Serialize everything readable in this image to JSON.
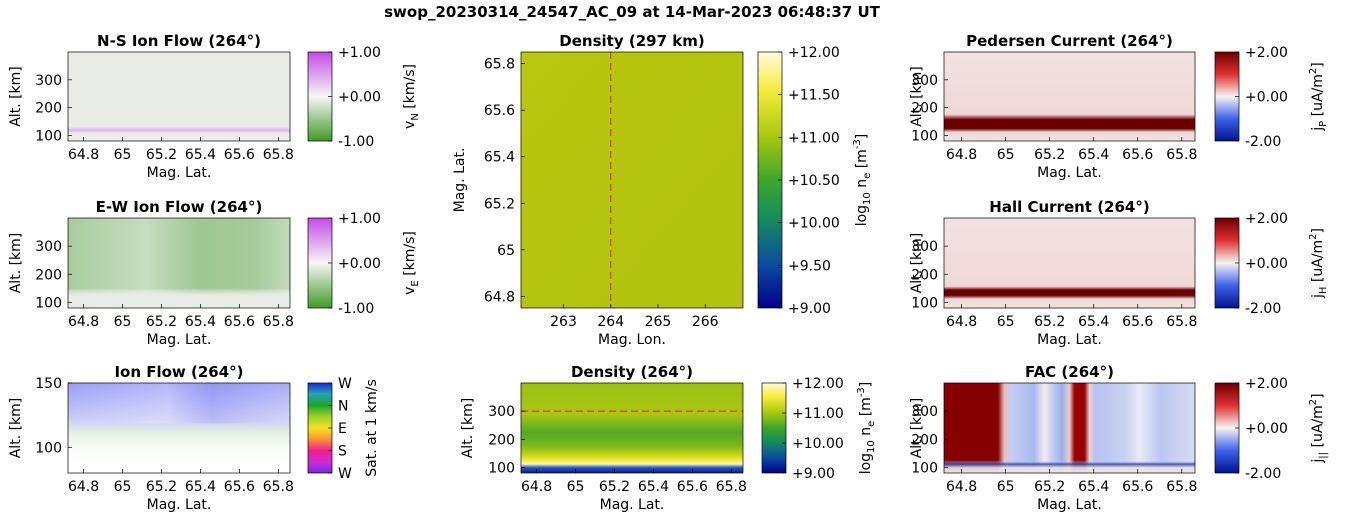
{
  "suptitle": "swop_20230314_24547_AC_09 at 14-Mar-2023 06:48:37 UT",
  "colors": {
    "ns_bg": "#e9ebe6",
    "ns_band": "#e3b6ef",
    "ew_light": "#b8d3ad",
    "ew_dark": "#94c487",
    "ew_low": "#e6ebe4",
    "density_yellowgreen": "#b8c810",
    "density_dark": "#0a1aa8",
    "current_bg": "#f1dcdc",
    "current_band": "#6b0000",
    "fac_red": "#860000",
    "fac_blue": "#c3cdf2",
    "fac_dark_blue": "#2a3fb0",
    "ref_line": "#e0283a"
  },
  "panels": {
    "ns_flow": {
      "title": "N-S Ion Flow (264°)",
      "xlabel": "Mag. Lat.",
      "ylabel": "Alt. [km]",
      "xticks": [
        "64.8",
        "65",
        "65.2",
        "65.4",
        "65.6",
        "65.8"
      ],
      "yticks": [
        "100",
        "200",
        "300"
      ],
      "cbar_ticks": [
        "+1.00",
        "+0.00",
        "-1.00"
      ],
      "cbar_label": "v_N [km/s]"
    },
    "ew_flow": {
      "title": "E-W Ion Flow (264°)",
      "xlabel": "Mag. Lat.",
      "ylabel": "Alt. [km]",
      "xticks": [
        "64.8",
        "65",
        "65.2",
        "65.4",
        "65.6",
        "65.8"
      ],
      "yticks": [
        "100",
        "200",
        "300"
      ],
      "cbar_ticks": [
        "+1.00",
        "+0.00",
        "-1.00"
      ],
      "cbar_label": "v_E [km/s]"
    },
    "ion_flow": {
      "title": "Ion Flow (264°)",
      "xlabel": "Mag. Lat.",
      "ylabel": "Alt. [km]",
      "xticks": [
        "64.8",
        "65",
        "65.2",
        "65.4",
        "65.6",
        "65.8"
      ],
      "yticks": [
        "100",
        "150"
      ],
      "cbar_ticks": [
        "W",
        "N",
        "E",
        "S",
        "W"
      ],
      "cbar_label": "Sat. at 1 km/s"
    },
    "density_map": {
      "title": "Density (297 km)",
      "xlabel": "Mag. Lon.",
      "ylabel": "Mag. Lat.",
      "xticks": [
        "263",
        "264",
        "265",
        "266"
      ],
      "yticks": [
        "64.8",
        "65",
        "65.2",
        "65.4",
        "65.6",
        "65.8"
      ],
      "cbar_ticks": [
        "+12.00",
        "+11.50",
        "+11.00",
        "+10.50",
        "+10.00",
        "+9.50",
        "+9.00"
      ],
      "cbar_label": "log10 n_e [m^-3]"
    },
    "density_alt": {
      "title": "Density (264°)",
      "xlabel": "Mag. Lat.",
      "ylabel": "Alt. [km]",
      "xticks": [
        "64.8",
        "65",
        "65.2",
        "65.4",
        "65.6",
        "65.8"
      ],
      "yticks": [
        "100",
        "200",
        "300"
      ],
      "cbar_ticks": [
        "+12.00",
        "+11.00",
        "+10.00",
        "+9.00"
      ],
      "cbar_label": "log10 n_e [m^-3]"
    },
    "pedersen": {
      "title": "Pedersen Current (264°)",
      "xlabel": "Mag. Lat.",
      "ylabel": "Alt. [km]",
      "xticks": [
        "64.8",
        "65",
        "65.2",
        "65.4",
        "65.6",
        "65.8"
      ],
      "yticks": [
        "100",
        "200",
        "300"
      ],
      "cbar_ticks": [
        "+2.00",
        "+0.00",
        "-2.00"
      ],
      "cbar_label": "j_P [uA/m^2]"
    },
    "hall": {
      "title": "Hall Current (264°)",
      "xlabel": "Mag. Lat.",
      "ylabel": "Alt. [km]",
      "xticks": [
        "64.8",
        "65",
        "65.2",
        "65.4",
        "65.6",
        "65.8"
      ],
      "yticks": [
        "100",
        "200",
        "300"
      ],
      "cbar_ticks": [
        "+2.00",
        "+0.00",
        "-2.00"
      ],
      "cbar_label": "j_H [uA/m^2]"
    },
    "fac": {
      "title": "FAC (264°)",
      "xlabel": "Mag. Lat.",
      "ylabel": "Alt. [km]",
      "xticks": [
        "64.8",
        "65",
        "65.2",
        "65.4",
        "65.6",
        "65.8"
      ],
      "yticks": [
        "100",
        "200",
        "300"
      ],
      "cbar_ticks": [
        "+2.00",
        "+0.00",
        "-2.00"
      ],
      "cbar_label": "j_|| [uA/m^2]"
    }
  },
  "chart_data": [
    {
      "type": "heatmap",
      "title": "N-S Ion Flow (264°)",
      "xlabel": "Mag. Lat.",
      "ylabel": "Alt. [km]",
      "xlim": [
        64.72,
        65.86
      ],
      "ylim": [
        80,
        400
      ],
      "clim": [
        -1,
        1
      ],
      "colorbar": [
        "+1.00",
        "+0.00",
        "-1.00"
      ],
      "summary": {
        "background_vN": 0.0,
        "band_altitude_km": 120,
        "band_vN": 0.4
      }
    },
    {
      "type": "heatmap",
      "title": "E-W Ion Flow (264°)",
      "xlabel": "Mag. Lat.",
      "ylabel": "Alt. [km]",
      "xlim": [
        64.72,
        65.86
      ],
      "ylim": [
        80,
        400
      ],
      "clim": [
        -1,
        1
      ],
      "colorbar": [
        "+1.00",
        "+0.00",
        "-1.00"
      ],
      "summary": {
        "vE_above_130km": -0.3,
        "vE_below_120km": 0.0
      }
    },
    {
      "type": "heatmap",
      "title": "Ion Flow (264°)",
      "xlabel": "Mag. Lat.",
      "ylabel": "Alt. [km]",
      "xlim": [
        64.72,
        65.86
      ],
      "ylim": [
        80,
        150
      ],
      "colorbar": [
        "W",
        "N",
        "E",
        "S",
        "W"
      ]
    },
    {
      "type": "heatmap",
      "title": "Density (297 km)",
      "xlabel": "Mag. Lon.",
      "ylabel": "Mag. Lat.",
      "xlim": [
        262.1,
        266.8
      ],
      "ylim": [
        64.75,
        65.85
      ],
      "clim": [
        9,
        12
      ],
      "colorbar": [
        "+12.00",
        "+11.50",
        "+11.00",
        "+10.50",
        "+10.00",
        "+9.50",
        "+9.00"
      ],
      "reference_line_lon": 264,
      "summary": {
        "log10_ne": 11.4
      }
    },
    {
      "type": "heatmap",
      "title": "Density (264°)",
      "xlabel": "Mag. Lat.",
      "ylabel": "Alt. [km]",
      "xlim": [
        64.72,
        65.86
      ],
      "ylim": [
        80,
        400
      ],
      "clim": [
        9,
        12
      ],
      "colorbar": [
        "+12.00",
        "+11.00",
        "+10.00",
        "+9.00"
      ],
      "reference_line_alt": 300
    },
    {
      "type": "heatmap",
      "title": "Pedersen Current (264°)",
      "xlabel": "Mag. Lat.",
      "ylabel": "Alt. [km]",
      "xlim": [
        64.72,
        65.86
      ],
      "ylim": [
        80,
        400
      ],
      "clim": [
        -2,
        2
      ],
      "colorbar": [
        "+2.00",
        "+0.00",
        "-2.00"
      ],
      "summary": {
        "band_altitude_km": 120,
        "band_jP": 2.0
      }
    },
    {
      "type": "heatmap",
      "title": "Hall Current (264°)",
      "xlabel": "Mag. Lat.",
      "ylabel": "Alt. [km]",
      "xlim": [
        64.72,
        65.86
      ],
      "ylim": [
        80,
        400
      ],
      "clim": [
        -2,
        2
      ],
      "colorbar": [
        "+2.00",
        "+0.00",
        "-2.00"
      ],
      "summary": {
        "band_altitude_km": 120,
        "band_jH": 2.0
      }
    },
    {
      "type": "heatmap",
      "title": "FAC (264°)",
      "xlabel": "Mag. Lat.",
      "ylabel": "Alt. [km]",
      "xlim": [
        64.72,
        65.86
      ],
      "ylim": [
        80,
        400
      ],
      "clim": [
        -2,
        2
      ],
      "colorbar": [
        "+2.00",
        "+0.00",
        "-2.00"
      ],
      "summary": {
        "red_bands_mag_lat": [
          [
            64.72,
            64.96
          ],
          [
            65.24,
            65.3
          ]
        ]
      }
    }
  ]
}
